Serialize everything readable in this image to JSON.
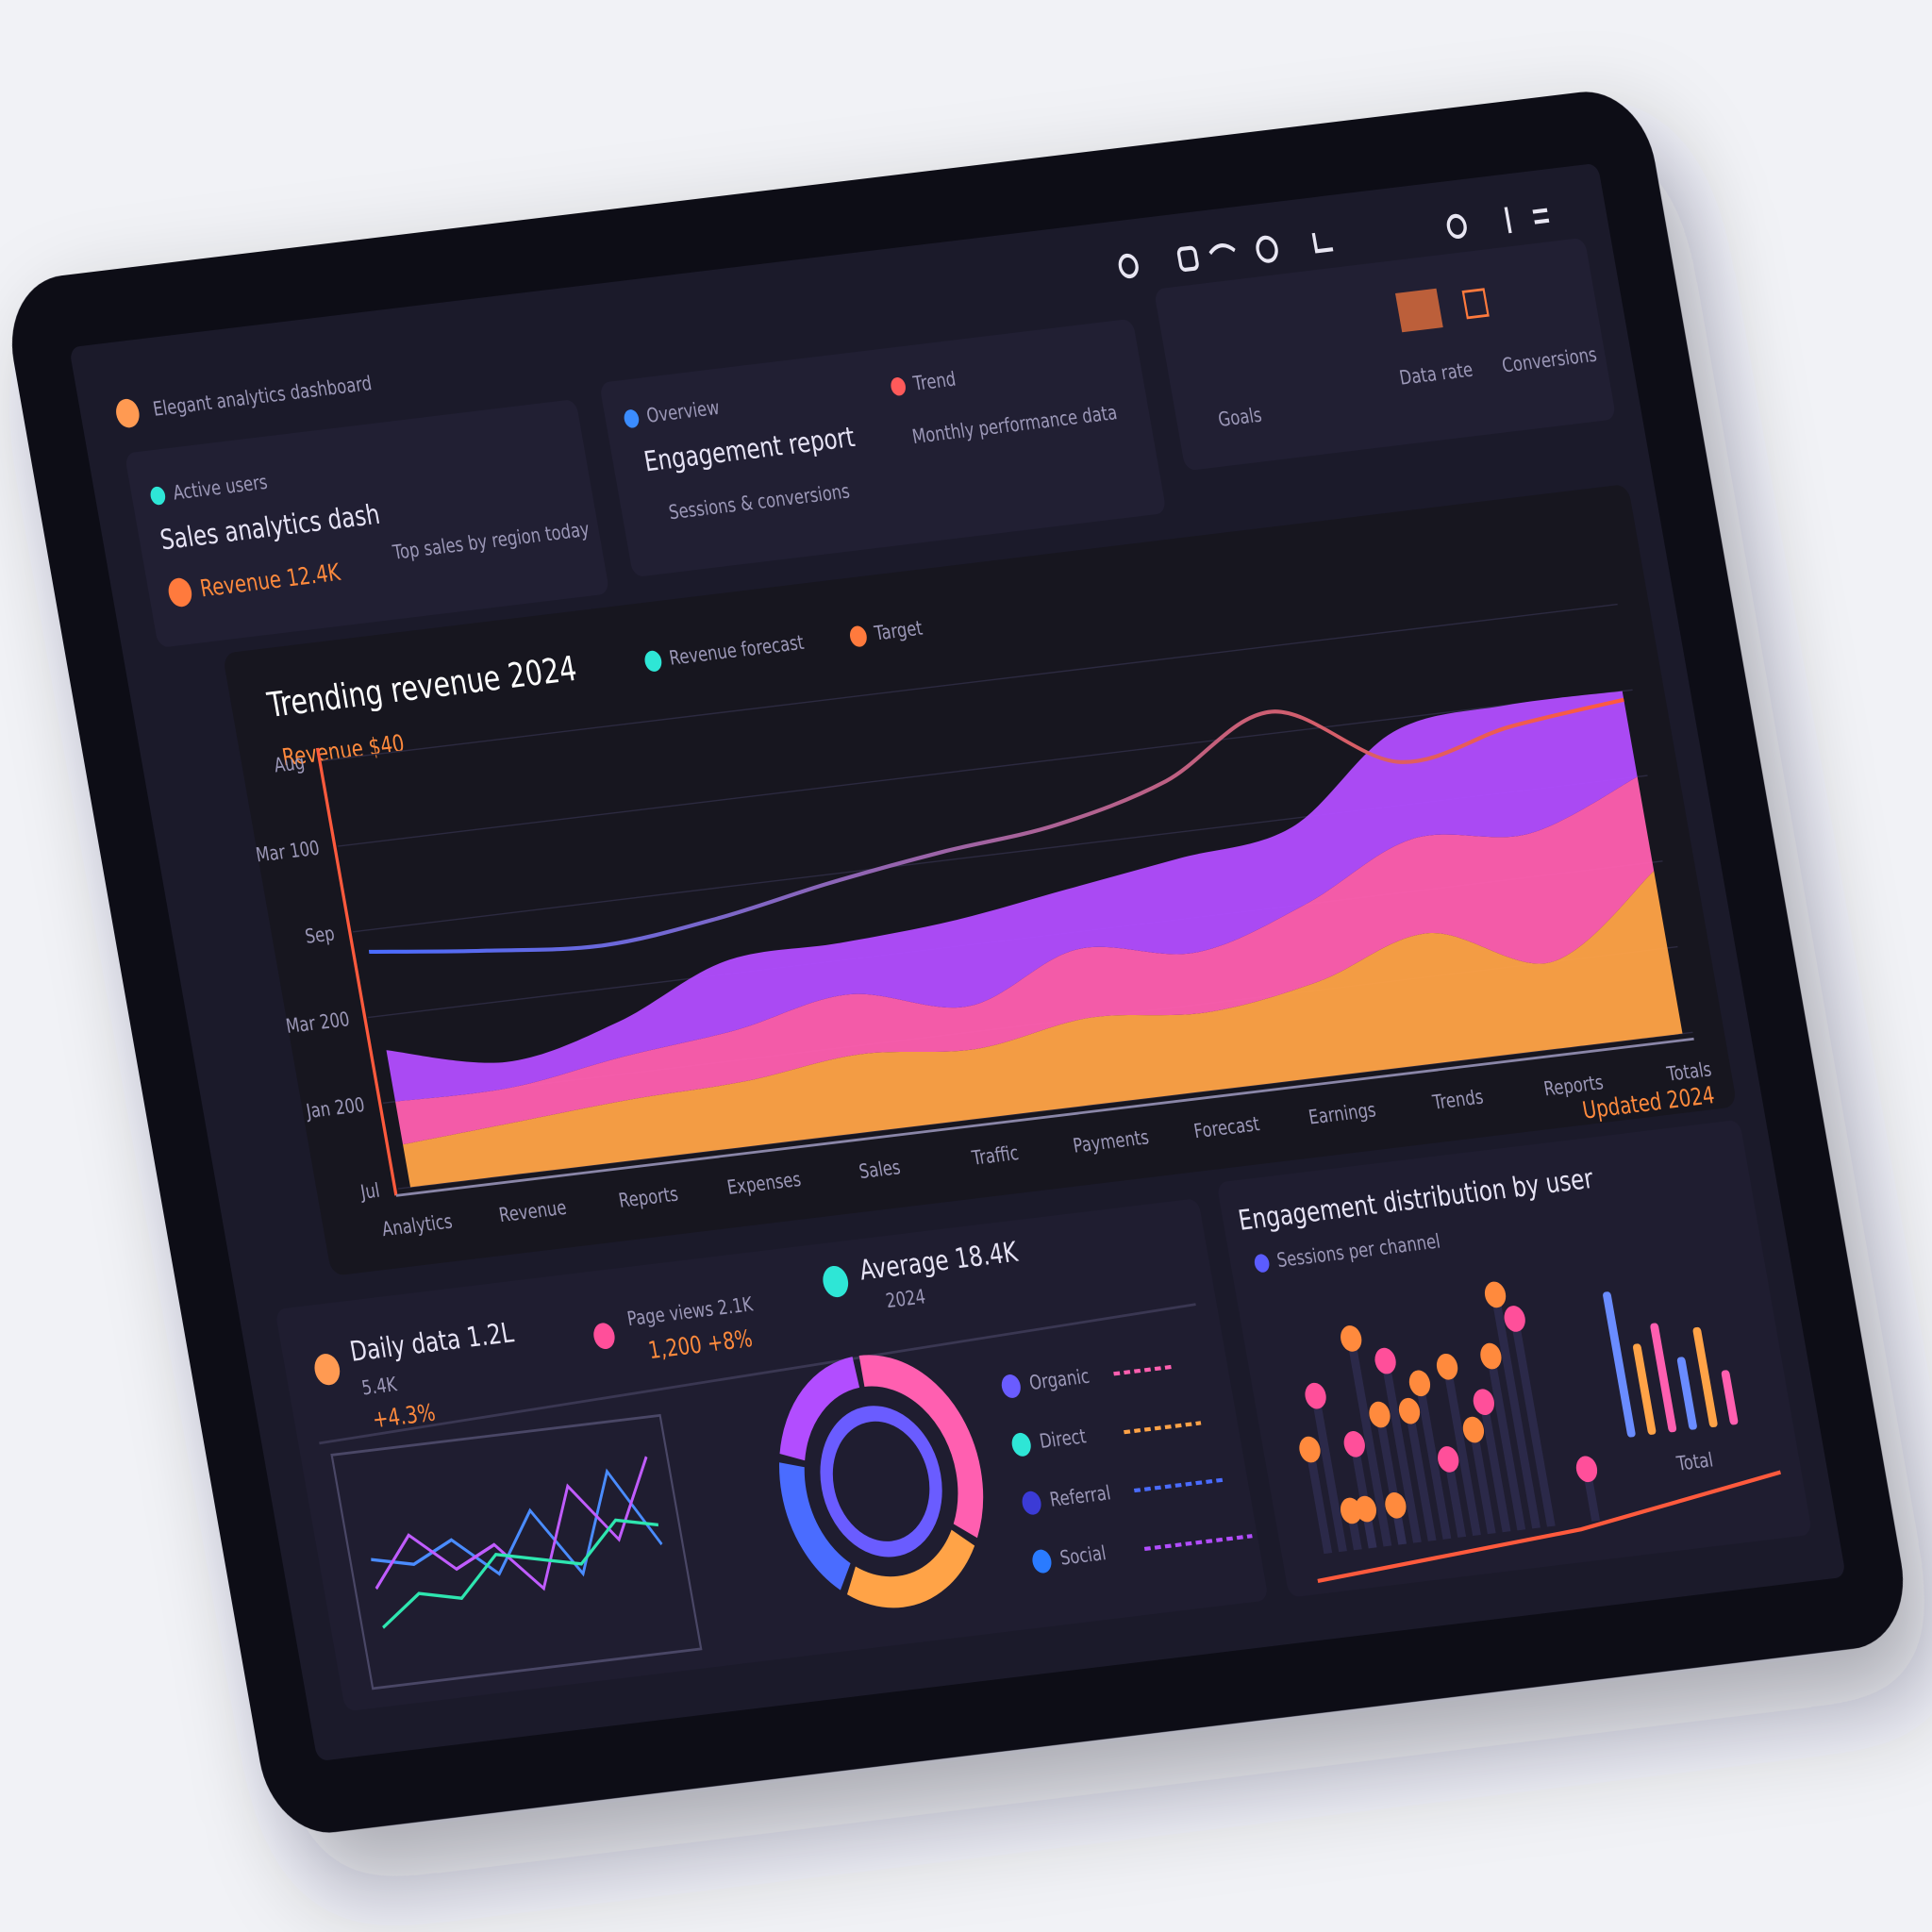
{
  "header": {
    "title": "Elegant analytics dashboard"
  },
  "cards": [
    {
      "tag": "Active users",
      "title": "Sales analytics dash",
      "value": "Revenue 12.4K",
      "note": "Top sales by region today"
    },
    {
      "tag": "Overview",
      "title": "Engagement report",
      "value": "Sessions & conversions",
      "tag2": "Trend",
      "note": "Monthly performance data"
    },
    {
      "title": "Goals",
      "value": "Data rate",
      "note": "Conversions"
    }
  ],
  "stats": [
    {
      "label": "Daily data 1.2L",
      "value": "5.4K",
      "change": "+4.3%"
    },
    {
      "label": "Page views 2.1K",
      "value": "1,200 +8%"
    },
    {
      "label": "Average 18.4K",
      "value": "2024"
    }
  ],
  "chart_data": [
    {
      "type": "area",
      "title": "Trending revenue 2024",
      "subtitle": "Revenue $40",
      "legend": [
        {
          "name": "Revenue forecast",
          "color": "#2ee6d6"
        },
        {
          "name": "Target",
          "color": "#ff7a3d"
        }
      ],
      "categories": [
        "Analytics",
        "Revenue",
        "Reports",
        "Expenses",
        "Sales",
        "Traffic",
        "Payments",
        "Forecast",
        "Earnings",
        "Trends",
        "Reports",
        "Totals"
      ],
      "ylim": [
        0,
        100
      ],
      "yticks": [
        {
          "value": 0,
          "label": "Jul"
        },
        {
          "value": 20,
          "label": "Jan 200"
        },
        {
          "value": 40,
          "label": "Mar 200"
        },
        {
          "value": 60,
          "label": "Sep"
        },
        {
          "value": 80,
          "label": "Mar 100"
        },
        {
          "value": 100,
          "label": "Aug"
        }
      ],
      "grid": true,
      "stacked": true,
      "series": [
        {
          "color": "#ffa347",
          "values": [
            10,
            12,
            14,
            15,
            18,
            16,
            20,
            18,
            22,
            30,
            20,
            38
          ]
        },
        {
          "color": "#ff5fb0",
          "values": [
            10,
            8,
            10,
            12,
            14,
            10,
            16,
            14,
            18,
            22,
            30,
            22
          ]
        },
        {
          "color": "#b24dff",
          "values": [
            12,
            6,
            8,
            16,
            12,
            20,
            14,
            22,
            18,
            25,
            30,
            20
          ]
        }
      ],
      "line": {
        "colors": [
          "#4a6cff",
          "#ff5a3d"
        ],
        "values": [
          55,
          52,
          50,
          53,
          58,
          62,
          65,
          72,
          85,
          70,
          75,
          78
        ]
      }
    },
    {
      "type": "line",
      "ylim": [
        0,
        100
      ],
      "series": [
        {
          "color": "#4a8cff",
          "values": [
            55,
            50,
            60,
            40,
            70,
            35,
            85,
            45
          ]
        },
        {
          "color": "#c05cff",
          "values": [
            40,
            65,
            45,
            55,
            30,
            80,
            50,
            90
          ]
        },
        {
          "color": "#2ee6b0",
          "values": [
            20,
            35,
            30,
            50,
            45,
            40,
            60,
            55
          ]
        }
      ]
    },
    {
      "type": "pie",
      "values": [
        35,
        25,
        20,
        20
      ],
      "colors": [
        "#ff5fb0",
        "#ffa347",
        "#4a6cff",
        "#b24dff"
      ],
      "legend": [
        "Organic",
        "Direct",
        "Referral",
        "Social"
      ],
      "legend_colors": [
        "#6a5cff",
        "#2ee6d6",
        "#3b3bd6",
        "#2a7bff"
      ]
    },
    {
      "type": "scatter",
      "title": "Engagement distribution by user",
      "subtitle": "Sessions per channel",
      "note": "Updated 2024",
      "label": "Total",
      "xlim": [
        0,
        10
      ],
      "ylim": [
        0,
        10
      ],
      "series": [
        {
          "color": "#ff4f9a",
          "x": [
            1,
            2,
            3.5,
            5,
            6.5,
            8,
            9.5
          ],
          "y": [
            6,
            4,
            7,
            3,
            5,
            8,
            2
          ]
        },
        {
          "color": "#ff8a3d",
          "x": [
            0.5,
            2.5,
            3,
            4,
            4.5,
            5.5,
            6,
            7,
            7.5,
            1.5,
            2,
            3
          ],
          "y": [
            4,
            8,
            5,
            5,
            6,
            6.5,
            4,
            6.7,
            9,
            1.5,
            1.5,
            1.5
          ]
        }
      ],
      "bars": {
        "colors": [
          "#6a8cff",
          "#ffa347",
          "#ff5fb0"
        ],
        "values": [
          80,
          50,
          60,
          40,
          55,
          30
        ]
      }
    }
  ]
}
